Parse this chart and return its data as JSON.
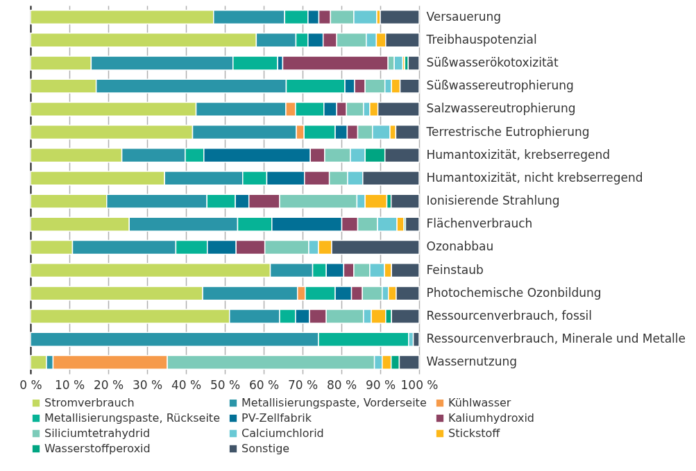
{
  "chart_data": {
    "type": "bar",
    "orientation": "horizontal",
    "stacked": true,
    "categories": [
      "Versauerung",
      "Treibhauspotenzial",
      "Süßwasserökotoxizität",
      "Süßwassereutrophierung",
      "Salzwassereutrophierung",
      "Terrestrische Eutrophierung",
      "Humantoxizität, krebserregend",
      "Humantoxizität, nicht krebserregend",
      "Ionisierende Strahlung",
      "Flächenverbrauch",
      "Ozonabbau",
      "Feinstaub",
      "Photochemische Ozonbildung",
      "Ressourcenverbrauch, fossil",
      "Ressourcenverbrauch, Minerale und Metalle",
      "Wassernutzung"
    ],
    "series": [
      {
        "name": "Stromverbrauch",
        "color": "#c3d960",
        "values": [
          47.1,
          58.1,
          15.6,
          16.9,
          42.6,
          41.7,
          23.5,
          34.5,
          19.6,
          25.4,
          10.8,
          61.7,
          44.3,
          51.2,
          0,
          4.1
        ]
      },
      {
        "name": "Metallisierungspaste, Vorderseite",
        "color": "#2a95a8",
        "values": [
          18.3,
          10.2,
          36.5,
          48.9,
          23.1,
          26.7,
          16.3,
          20.1,
          25.8,
          27.9,
          26.6,
          10.9,
          24.4,
          12.9,
          74.1,
          1.7
        ]
      },
      {
        "name": "Kühlwasser",
        "color": "#f69a4a",
        "values": [
          0,
          0,
          0,
          0,
          2.5,
          2.0,
          0,
          0,
          0,
          0,
          0,
          0,
          2.0,
          0,
          0,
          29.4
        ]
      },
      {
        "name": "Metallisierungspaste, Rückseite",
        "color": "#06b396",
        "values": [
          6.0,
          3.1,
          11.5,
          15.1,
          7.3,
          8.0,
          4.8,
          6.2,
          7.3,
          8.8,
          8.1,
          3.5,
          7.7,
          4.1,
          23.2,
          0
        ]
      },
      {
        "name": "PV-Zellfabrik",
        "color": "#027096",
        "values": [
          2.8,
          3.9,
          1.3,
          2.5,
          3.3,
          3.1,
          27.4,
          9.7,
          3.5,
          18.0,
          7.4,
          4.5,
          4.2,
          3.6,
          0,
          0
        ]
      },
      {
        "name": "Kaliumhydroxid",
        "color": "#8e4262",
        "values": [
          3.0,
          3.5,
          27.1,
          2.7,
          2.5,
          2.7,
          3.7,
          6.4,
          7.9,
          4.1,
          7.4,
          2.6,
          2.8,
          4.3,
          0,
          0
        ]
      },
      {
        "name": "Siliciumtetrahydrid",
        "color": "#7ccbb9",
        "values": [
          6.0,
          7.6,
          1.6,
          5.1,
          4.4,
          3.8,
          6.6,
          4.7,
          19.9,
          5.1,
          11.3,
          4.1,
          5.1,
          9.6,
          0,
          53.3
        ]
      },
      {
        "name": "Calciumchlorid",
        "color": "#69c9d5",
        "values": [
          5.9,
          2.6,
          2.2,
          1.7,
          1.6,
          4.5,
          3.8,
          3.9,
          2.1,
          5.0,
          2.5,
          3.8,
          1.6,
          2.0,
          1.2,
          2.0
        ]
      },
      {
        "name": "Stickstoff",
        "color": "#fdb819",
        "values": [
          0.9,
          2.4,
          0.5,
          2.2,
          2.1,
          1.5,
          0,
          0,
          5.6,
          1.8,
          3.4,
          1.8,
          2.0,
          3.7,
          0,
          2.3
        ]
      },
      {
        "name": "Wasserstoffperoxid",
        "color": "#00a582",
        "values": [
          0,
          0,
          0.9,
          0,
          0,
          0,
          5.1,
          0,
          1.1,
          0.4,
          0,
          0,
          0,
          1.5,
          0,
          2.1
        ]
      },
      {
        "name": "Sonstige",
        "color": "#415468",
        "values": [
          10.0,
          8.6,
          2.8,
          4.9,
          10.6,
          6.0,
          8.8,
          14.5,
          7.2,
          3.5,
          22.5,
          7.1,
          5.9,
          7.1,
          1.5,
          5.1
        ]
      }
    ],
    "xlim": [
      0,
      100
    ],
    "xticks": [
      {
        "value": 0,
        "label": "0 %"
      },
      {
        "value": 10,
        "label": "10 %"
      },
      {
        "value": 20,
        "label": "20 %"
      },
      {
        "value": 30,
        "label": "30 %"
      },
      {
        "value": 40,
        "label": "40 %"
      },
      {
        "value": 50,
        "label": "50 %"
      },
      {
        "value": 60,
        "label": "60 %"
      },
      {
        "value": 70,
        "label": "70 %"
      },
      {
        "value": 80,
        "label": "80 %"
      },
      {
        "value": 90,
        "label": "90 %"
      },
      {
        "value": 100,
        "label": "100 %"
      }
    ],
    "grid": "x",
    "legend": "bottom"
  }
}
